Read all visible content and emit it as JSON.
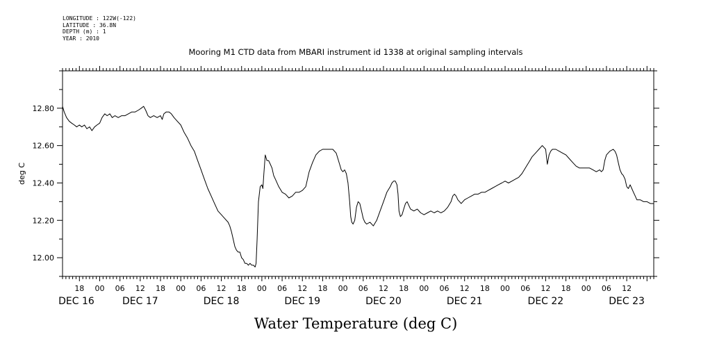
{
  "meta": {
    "longitude": "LONGITUDE : 122W(-122)",
    "latitude": "LATITUDE : 36.8N",
    "depth": "DEPTH (m) : 1",
    "year": "YEAR : 2010"
  },
  "chart_data": {
    "type": "line",
    "title": "Mooring M1 CTD data from MBARI instrument id 1338 at original sampling intervals",
    "bottom_title": "Water Temperature (deg C)",
    "ylabel": "deg C",
    "ylim": [
      11.9,
      13.0
    ],
    "yticks": [
      {
        "value": 12.0,
        "label": "12.00"
      },
      {
        "value": 12.2,
        "label": "12.20"
      },
      {
        "value": 12.4,
        "label": "12.40"
      },
      {
        "value": 12.6,
        "label": "12.60"
      },
      {
        "value": 12.8,
        "label": "12.80"
      }
    ],
    "x_unit": "hours since DEC 16 00:00",
    "xlim": [
      13,
      188
    ],
    "hour_ticks": [
      {
        "hour": 18,
        "label": "18"
      },
      {
        "hour": 24,
        "label": "00"
      },
      {
        "hour": 30,
        "label": "06"
      },
      {
        "hour": 36,
        "label": "12"
      },
      {
        "hour": 42,
        "label": "18"
      },
      {
        "hour": 48,
        "label": "00"
      },
      {
        "hour": 54,
        "label": "06"
      },
      {
        "hour": 60,
        "label": "12"
      },
      {
        "hour": 66,
        "label": "18"
      },
      {
        "hour": 72,
        "label": "00"
      },
      {
        "hour": 78,
        "label": "06"
      },
      {
        "hour": 84,
        "label": "12"
      },
      {
        "hour": 90,
        "label": "18"
      },
      {
        "hour": 96,
        "label": "00"
      },
      {
        "hour": 102,
        "label": "06"
      },
      {
        "hour": 108,
        "label": "12"
      },
      {
        "hour": 114,
        "label": "18"
      },
      {
        "hour": 120,
        "label": "00"
      },
      {
        "hour": 126,
        "label": "06"
      },
      {
        "hour": 132,
        "label": "12"
      },
      {
        "hour": 138,
        "label": "18"
      },
      {
        "hour": 144,
        "label": "00"
      },
      {
        "hour": 150,
        "label": "06"
      },
      {
        "hour": 156,
        "label": "12"
      },
      {
        "hour": 162,
        "label": "18"
      },
      {
        "hour": 168,
        "label": "00"
      },
      {
        "hour": 174,
        "label": "06"
      },
      {
        "hour": 180,
        "label": "12"
      }
    ],
    "date_labels": [
      {
        "hour": 12,
        "label": "DEC 16"
      },
      {
        "hour": 36,
        "label": "DEC 17"
      },
      {
        "hour": 60,
        "label": "DEC 18"
      },
      {
        "hour": 84,
        "label": "DEC 19"
      },
      {
        "hour": 108,
        "label": "DEC 20"
      },
      {
        "hour": 132,
        "label": "DEC 21"
      },
      {
        "hour": 156,
        "label": "DEC 22"
      },
      {
        "hour": 180,
        "label": "DEC 23"
      }
    ],
    "series": [
      {
        "color": "#000000",
        "points": [
          [
            13.0,
            12.81
          ],
          [
            13.5,
            12.78
          ],
          [
            14.2,
            12.75
          ],
          [
            15.0,
            12.73
          ],
          [
            15.7,
            12.72
          ],
          [
            16.5,
            12.71
          ],
          [
            17.2,
            12.7
          ],
          [
            18.0,
            12.71
          ],
          [
            18.7,
            12.7
          ],
          [
            19.5,
            12.71
          ],
          [
            20.2,
            12.69
          ],
          [
            21.0,
            12.7
          ],
          [
            21.7,
            12.68
          ],
          [
            22.5,
            12.7
          ],
          [
            23.2,
            12.71
          ],
          [
            24.0,
            12.72
          ],
          [
            24.7,
            12.75
          ],
          [
            25.5,
            12.77
          ],
          [
            26.2,
            12.76
          ],
          [
            27.0,
            12.77
          ],
          [
            27.7,
            12.75
          ],
          [
            28.5,
            12.76
          ],
          [
            29.5,
            12.75
          ],
          [
            30.5,
            12.76
          ],
          [
            31.5,
            12.76
          ],
          [
            32.5,
            12.77
          ],
          [
            33.5,
            12.78
          ],
          [
            34.5,
            12.78
          ],
          [
            35.5,
            12.79
          ],
          [
            36.3,
            12.8
          ],
          [
            37.0,
            12.81
          ],
          [
            37.6,
            12.79
          ],
          [
            38.3,
            12.76
          ],
          [
            39.0,
            12.75
          ],
          [
            40.0,
            12.76
          ],
          [
            41.0,
            12.75
          ],
          [
            42.0,
            12.76
          ],
          [
            42.5,
            12.74
          ],
          [
            43.0,
            12.77
          ],
          [
            43.7,
            12.78
          ],
          [
            44.5,
            12.78
          ],
          [
            45.2,
            12.77
          ],
          [
            46.0,
            12.75
          ],
          [
            47.0,
            12.73
          ],
          [
            48.0,
            12.71
          ],
          [
            49.0,
            12.67
          ],
          [
            50.0,
            12.64
          ],
          [
            51.0,
            12.6
          ],
          [
            52.0,
            12.57
          ],
          [
            53.0,
            12.52
          ],
          [
            54.0,
            12.47
          ],
          [
            55.0,
            12.42
          ],
          [
            56.0,
            12.37
          ],
          [
            57.0,
            12.33
          ],
          [
            58.0,
            12.29
          ],
          [
            59.0,
            12.25
          ],
          [
            60.0,
            12.23
          ],
          [
            61.0,
            12.21
          ],
          [
            62.0,
            12.19
          ],
          [
            62.5,
            12.17
          ],
          [
            63.0,
            12.14
          ],
          [
            63.5,
            12.1
          ],
          [
            64.0,
            12.06
          ],
          [
            64.5,
            12.04
          ],
          [
            65.0,
            12.03
          ],
          [
            65.5,
            12.03
          ],
          [
            66.0,
            12.0
          ],
          [
            66.5,
            11.99
          ],
          [
            67.0,
            11.97
          ],
          [
            67.5,
            11.97
          ],
          [
            68.0,
            11.96
          ],
          [
            68.5,
            11.97
          ],
          [
            69.0,
            11.96
          ],
          [
            69.5,
            11.96
          ],
          [
            70.0,
            11.95
          ],
          [
            70.3,
            11.97
          ],
          [
            70.6,
            12.1
          ],
          [
            71.0,
            12.3
          ],
          [
            71.5,
            12.38
          ],
          [
            72.0,
            12.39
          ],
          [
            72.3,
            12.37
          ],
          [
            72.6,
            12.45
          ],
          [
            73.0,
            12.55
          ],
          [
            73.5,
            12.52
          ],
          [
            74.0,
            12.52
          ],
          [
            74.5,
            12.5
          ],
          [
            75.0,
            12.48
          ],
          [
            75.5,
            12.44
          ],
          [
            76.0,
            12.42
          ],
          [
            77.0,
            12.38
          ],
          [
            78.0,
            12.35
          ],
          [
            79.0,
            12.34
          ],
          [
            80.0,
            12.32
          ],
          [
            81.0,
            12.33
          ],
          [
            82.0,
            12.35
          ],
          [
            83.0,
            12.35
          ],
          [
            84.0,
            12.36
          ],
          [
            85.0,
            12.38
          ],
          [
            86.0,
            12.46
          ],
          [
            87.0,
            12.51
          ],
          [
            88.0,
            12.55
          ],
          [
            89.0,
            12.57
          ],
          [
            90.0,
            12.58
          ],
          [
            91.0,
            12.58
          ],
          [
            92.0,
            12.58
          ],
          [
            93.0,
            12.58
          ],
          [
            94.0,
            12.56
          ],
          [
            95.0,
            12.5
          ],
          [
            95.5,
            12.47
          ],
          [
            96.0,
            12.46
          ],
          [
            96.5,
            12.47
          ],
          [
            97.0,
            12.45
          ],
          [
            97.5,
            12.4
          ],
          [
            98.0,
            12.3
          ],
          [
            98.3,
            12.22
          ],
          [
            98.6,
            12.19
          ],
          [
            99.0,
            12.18
          ],
          [
            99.5,
            12.2
          ],
          [
            100.0,
            12.27
          ],
          [
            100.5,
            12.3
          ],
          [
            101.0,
            12.29
          ],
          [
            101.5,
            12.25
          ],
          [
            102.0,
            12.21
          ],
          [
            102.5,
            12.19
          ],
          [
            103.0,
            12.18
          ],
          [
            104.0,
            12.19
          ],
          [
            105.0,
            12.17
          ],
          [
            106.0,
            12.2
          ],
          [
            107.0,
            12.25
          ],
          [
            108.0,
            12.3
          ],
          [
            109.0,
            12.35
          ],
          [
            110.0,
            12.38
          ],
          [
            110.5,
            12.4
          ],
          [
            111.0,
            12.41
          ],
          [
            111.5,
            12.41
          ],
          [
            112.0,
            12.39
          ],
          [
            112.3,
            12.34
          ],
          [
            112.6,
            12.25
          ],
          [
            113.0,
            12.22
          ],
          [
            113.5,
            12.23
          ],
          [
            114.0,
            12.26
          ],
          [
            114.5,
            12.29
          ],
          [
            115.0,
            12.3
          ],
          [
            115.5,
            12.28
          ],
          [
            116.0,
            12.26
          ],
          [
            117.0,
            12.25
          ],
          [
            118.0,
            12.26
          ],
          [
            119.0,
            12.24
          ],
          [
            120.0,
            12.23
          ],
          [
            121.0,
            12.24
          ],
          [
            122.0,
            12.25
          ],
          [
            123.0,
            12.24
          ],
          [
            124.0,
            12.25
          ],
          [
            125.0,
            12.24
          ],
          [
            126.0,
            12.25
          ],
          [
            127.0,
            12.27
          ],
          [
            128.0,
            12.3
          ],
          [
            128.5,
            12.33
          ],
          [
            129.0,
            12.34
          ],
          [
            129.5,
            12.33
          ],
          [
            130.0,
            12.31
          ],
          [
            131.0,
            12.29
          ],
          [
            132.0,
            12.31
          ],
          [
            133.0,
            12.32
          ],
          [
            134.0,
            12.33
          ],
          [
            135.0,
            12.34
          ],
          [
            136.0,
            12.34
          ],
          [
            137.0,
            12.35
          ],
          [
            138.0,
            12.35
          ],
          [
            139.0,
            12.36
          ],
          [
            140.0,
            12.37
          ],
          [
            141.0,
            12.38
          ],
          [
            142.0,
            12.39
          ],
          [
            143.0,
            12.4
          ],
          [
            144.0,
            12.41
          ],
          [
            145.0,
            12.4
          ],
          [
            146.0,
            12.41
          ],
          [
            147.0,
            12.42
          ],
          [
            148.0,
            12.43
          ],
          [
            149.0,
            12.45
          ],
          [
            150.0,
            12.48
          ],
          [
            151.0,
            12.51
          ],
          [
            152.0,
            12.54
          ],
          [
            153.0,
            12.56
          ],
          [
            154.0,
            12.58
          ],
          [
            154.5,
            12.59
          ],
          [
            155.0,
            12.6
          ],
          [
            155.5,
            12.59
          ],
          [
            156.0,
            12.58
          ],
          [
            156.5,
            12.5
          ],
          [
            157.0,
            12.55
          ],
          [
            157.5,
            12.57
          ],
          [
            158.0,
            12.58
          ],
          [
            159.0,
            12.58
          ],
          [
            160.0,
            12.57
          ],
          [
            161.0,
            12.56
          ],
          [
            162.0,
            12.55
          ],
          [
            163.0,
            12.53
          ],
          [
            164.0,
            12.51
          ],
          [
            165.0,
            12.49
          ],
          [
            166.0,
            12.48
          ],
          [
            167.0,
            12.48
          ],
          [
            168.0,
            12.48
          ],
          [
            169.0,
            12.48
          ],
          [
            170.0,
            12.47
          ],
          [
            171.0,
            12.46
          ],
          [
            172.0,
            12.47
          ],
          [
            172.5,
            12.46
          ],
          [
            173.0,
            12.47
          ],
          [
            173.5,
            12.52
          ],
          [
            174.0,
            12.55
          ],
          [
            175.0,
            12.57
          ],
          [
            176.0,
            12.58
          ],
          [
            176.5,
            12.57
          ],
          [
            177.0,
            12.55
          ],
          [
            177.5,
            12.51
          ],
          [
            178.0,
            12.47
          ],
          [
            178.5,
            12.45
          ],
          [
            179.0,
            12.44
          ],
          [
            179.5,
            12.42
          ],
          [
            180.0,
            12.38
          ],
          [
            180.5,
            12.37
          ],
          [
            181.0,
            12.39
          ],
          [
            181.5,
            12.37
          ],
          [
            182.0,
            12.35
          ],
          [
            182.5,
            12.33
          ],
          [
            183.0,
            12.31
          ],
          [
            184.0,
            12.31
          ],
          [
            185.0,
            12.3
          ],
          [
            186.0,
            12.3
          ],
          [
            187.0,
            12.29
          ],
          [
            188.0,
            12.29
          ]
        ]
      }
    ]
  }
}
